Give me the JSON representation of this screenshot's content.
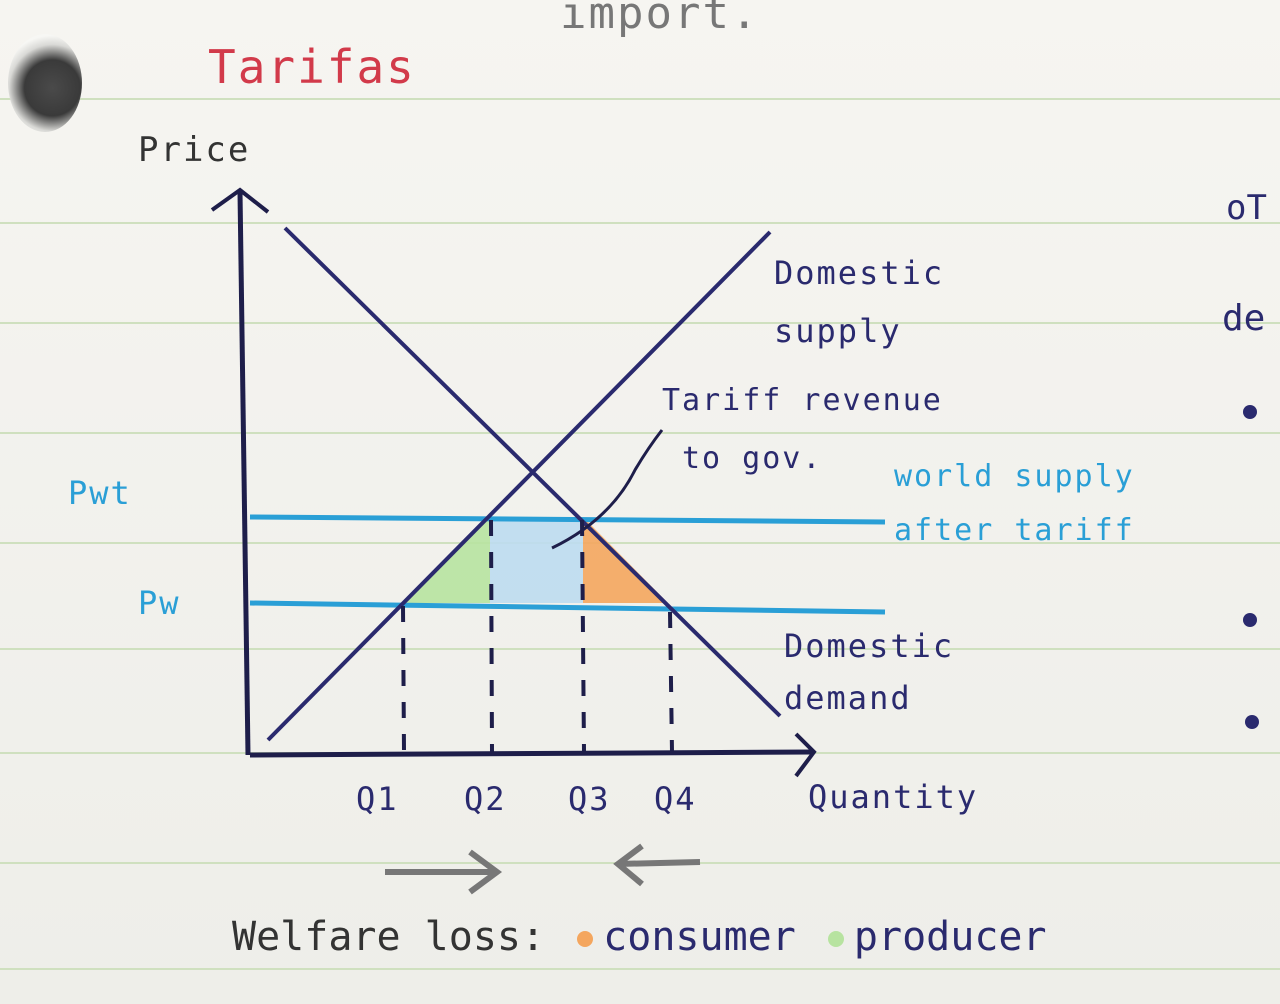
{
  "title": "Tarifas",
  "top_fragment": "import.",
  "axes": {
    "y_label": "Price",
    "x_label": "Quantity"
  },
  "curves": {
    "supply_label_line1": "Domestic",
    "supply_label_line2": "supply",
    "demand_label_line1": "Domestic",
    "demand_label_line2": "demand"
  },
  "annotations": {
    "tariff_line1": "Tariff revenue",
    "tariff_line2": "to gov.",
    "world_line1": "world supply",
    "world_line2": "after tariff"
  },
  "price_levels": {
    "pwt": "Pwt",
    "pw": "Pw"
  },
  "quantities": [
    "Q1",
    "Q2",
    "Q3",
    "Q4"
  ],
  "legend": {
    "prefix": "Welfare loss:",
    "consumer": "consumer",
    "producer": "producer"
  },
  "margin_fragments": [
    "oT",
    "de"
  ],
  "colors": {
    "ink": "#2a2a6e",
    "world_line": "#2a9fd6",
    "consumer_loss": "#f4a65e",
    "producer_loss": "#b7e3a0",
    "tariff_revenue": "#bcdcf0",
    "title": "#d23a4a"
  }
}
